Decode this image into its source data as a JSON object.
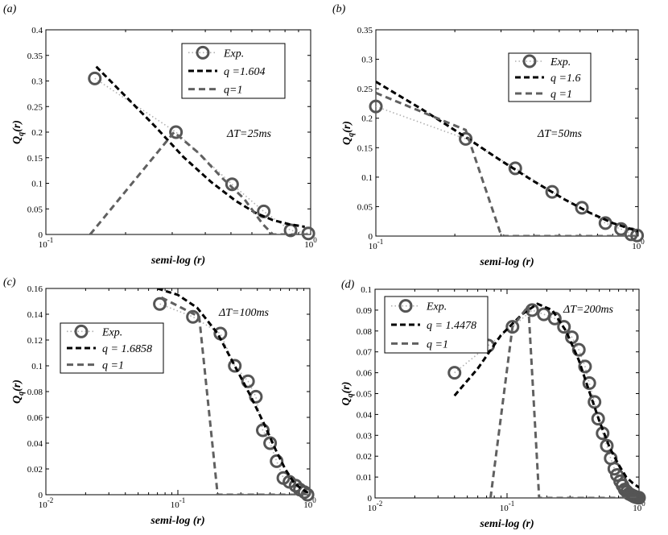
{
  "chart_data": [
    {
      "type": "line",
      "panel_label": "(a)",
      "xlabel": "semi-log (r)",
      "ylabel": "Q",
      "ylabel_sub": "q",
      "ylabel_suffix": "(r)",
      "xscale": "log",
      "xlim": [
        0.1,
        1.0
      ],
      "ylim": [
        0,
        0.4
      ],
      "xticks": [
        {
          "value": 0.1,
          "base": "10",
          "exp": "-1"
        },
        {
          "value": 1.0,
          "base": "10",
          "exp": "0"
        }
      ],
      "yticks": [
        "0",
        "0.05",
        "0.1",
        "0.15",
        "0.2",
        "0.25",
        "0.3",
        "0.35",
        "0.4"
      ],
      "annotation": "ΔT=25ms",
      "legend_position": "top-right",
      "series": [
        {
          "name": "Exp.",
          "style": "exp",
          "x": [
            0.153,
            0.31,
            0.505,
            0.665,
            0.84,
            0.98
          ],
          "y": [
            0.305,
            0.2,
            0.098,
            0.045,
            0.008,
            0.002
          ]
        },
        {
          "name": "q =1.604",
          "style": "fit",
          "x": [
            0.155,
            0.2,
            0.26,
            0.33,
            0.42,
            0.52,
            0.62,
            0.72,
            0.83,
            0.95
          ],
          "y": [
            0.328,
            0.27,
            0.21,
            0.152,
            0.103,
            0.066,
            0.042,
            0.028,
            0.02,
            0.015
          ]
        },
        {
          "name": "q=1",
          "style": "q1",
          "x": [
            0.147,
            0.305,
            0.38,
            0.46,
            0.56,
            0.66,
            0.72,
            0.85,
            0.98
          ],
          "y": [
            0.0,
            0.2,
            0.158,
            0.112,
            0.07,
            0.02,
            0.0,
            0.0,
            0.0
          ]
        }
      ]
    },
    {
      "type": "line",
      "panel_label": "(b)",
      "xlabel": "semi-log (r)",
      "ylabel": "Q",
      "ylabel_sub": "q",
      "ylabel_suffix": "(r)",
      "xscale": "log",
      "xlim": [
        0.1,
        1.0
      ],
      "ylim": [
        0,
        0.35
      ],
      "xticks": [
        {
          "value": 0.1,
          "base": "10",
          "exp": "-1"
        },
        {
          "value": 1.0,
          "base": "10",
          "exp": "0"
        }
      ],
      "yticks": [
        "0",
        "0.05",
        "0.1",
        "0.15",
        "0.2",
        "0.25",
        "0.3",
        "0.35"
      ],
      "annotation": "ΔT=50ms",
      "legend_position": "top-right",
      "series": [
        {
          "name": "Exp.",
          "style": "exp",
          "x": [
            0.1,
            0.22,
            0.34,
            0.47,
            0.61,
            0.75,
            0.86,
            0.94,
            0.99
          ],
          "y": [
            0.22,
            0.165,
            0.115,
            0.075,
            0.048,
            0.022,
            0.012,
            0.003,
            0.001
          ]
        },
        {
          "name": "q =1.6",
          "style": "fit",
          "x": [
            0.1,
            0.15,
            0.22,
            0.3,
            0.4,
            0.52,
            0.65,
            0.8,
            1.0
          ],
          "y": [
            0.262,
            0.215,
            0.168,
            0.128,
            0.093,
            0.063,
            0.04,
            0.022,
            0.008
          ]
        },
        {
          "name": "q =1",
          "style": "q1",
          "x": [
            0.1,
            0.22,
            0.3,
            0.31,
            0.5,
            0.7,
            1.0
          ],
          "y": [
            0.243,
            0.18,
            0.002,
            0.0,
            0.0,
            0.0,
            0.0
          ]
        }
      ]
    },
    {
      "type": "line",
      "panel_label": "(c)",
      "xlabel": "semi-log (r)",
      "ylabel": "Q",
      "ylabel_sub": "q",
      "ylabel_suffix": "(r)",
      "xscale": "log",
      "xlim": [
        0.01,
        1.0
      ],
      "ylim": [
        0,
        0.16
      ],
      "xticks": [
        {
          "value": 0.01,
          "base": "10",
          "exp": "-2"
        },
        {
          "value": 0.1,
          "base": "10",
          "exp": "-1"
        },
        {
          "value": 1.0,
          "base": "10",
          "exp": "0"
        }
      ],
      "yticks": [
        "0",
        "0.02",
        "0.04",
        "0.06",
        "0.08",
        "0.1",
        "0.12",
        "0.14",
        "0.16"
      ],
      "annotation": "ΔT=100ms",
      "legend_position": "top-left",
      "series": [
        {
          "name": "Exp.",
          "style": "exp",
          "x": [
            0.073,
            0.13,
            0.21,
            0.27,
            0.34,
            0.39,
            0.44,
            0.5,
            0.56,
            0.63,
            0.7,
            0.78,
            0.84,
            0.91,
            0.96
          ],
          "y": [
            0.148,
            0.138,
            0.125,
            0.1,
            0.088,
            0.076,
            0.05,
            0.04,
            0.026,
            0.013,
            0.01,
            0.007,
            0.004,
            0.002,
            0.0
          ]
        },
        {
          "name": "q = 1.6858",
          "style": "fit",
          "x": [
            0.07,
            0.1,
            0.14,
            0.2,
            0.27,
            0.35,
            0.45,
            0.55,
            0.65,
            0.75,
            0.85,
            0.95,
            1.0
          ],
          "y": [
            0.16,
            0.155,
            0.145,
            0.125,
            0.1,
            0.078,
            0.055,
            0.035,
            0.02,
            0.01,
            0.005,
            0.002,
            0.001
          ]
        },
        {
          "name": "q =1",
          "style": "q1",
          "x": [
            0.075,
            0.145,
            0.2,
            0.3,
            0.5,
            1.0
          ],
          "y": [
            0.153,
            0.138,
            0.0,
            0.0,
            0.0,
            0.0
          ]
        }
      ]
    },
    {
      "type": "line",
      "panel_label": "(d)",
      "xlabel": "semi-log (r)",
      "ylabel": "Q",
      "ylabel_sub": "q",
      "ylabel_suffix": "(r)",
      "xscale": "log",
      "xlim": [
        0.01,
        1.0
      ],
      "ylim": [
        0,
        0.1
      ],
      "xticks": [
        {
          "value": 0.01,
          "base": "10",
          "exp": "-2"
        },
        {
          "value": 0.1,
          "base": "10",
          "exp": "-1"
        },
        {
          "value": 1.0,
          "base": "10",
          "exp": "0"
        }
      ],
      "yticks": [
        "0",
        "0.01",
        "0.02",
        "0.03",
        "0.04",
        "0.05",
        "0.06",
        "0.07",
        "0.08",
        "0.09",
        "0.1"
      ],
      "annotation": "ΔT=200ms",
      "legend_position": "top-left",
      "series": [
        {
          "name": "Exp.",
          "style": "exp",
          "x": [
            0.04,
            0.072,
            0.11,
            0.155,
            0.19,
            0.23,
            0.27,
            0.31,
            0.35,
            0.39,
            0.42,
            0.46,
            0.49,
            0.53,
            0.57,
            0.61,
            0.65,
            0.68,
            0.72,
            0.75,
            0.78,
            0.81,
            0.84,
            0.87,
            0.9,
            0.92,
            0.94,
            0.96,
            0.98,
            1.0
          ],
          "y": [
            0.06,
            0.073,
            0.082,
            0.09,
            0.088,
            0.086,
            0.082,
            0.077,
            0.071,
            0.063,
            0.055,
            0.046,
            0.038,
            0.031,
            0.025,
            0.019,
            0.014,
            0.011,
            0.008,
            0.006,
            0.004,
            0.003,
            0.002,
            0.0015,
            0.001,
            0.0007,
            0.0005,
            0.0003,
            0.0002,
            0.0001
          ]
        },
        {
          "name": "q = 1.4478",
          "style": "fit",
          "x": [
            0.04,
            0.06,
            0.09,
            0.13,
            0.17,
            0.22,
            0.28,
            0.35,
            0.42,
            0.5,
            0.6,
            0.7,
            0.8,
            0.9,
            1.0
          ],
          "y": [
            0.049,
            0.062,
            0.078,
            0.088,
            0.093,
            0.09,
            0.08,
            0.066,
            0.051,
            0.037,
            0.024,
            0.016,
            0.01,
            0.007,
            0.005
          ]
        },
        {
          "name": "q =1",
          "style": "q1",
          "x": [
            0.075,
            0.11,
            0.145,
            0.175,
            0.19,
            0.3,
            0.5,
            1.0
          ],
          "y": [
            0.0,
            0.082,
            0.092,
            0.0,
            0.0,
            0.0,
            0.0,
            0.0
          ]
        }
      ]
    }
  ]
}
